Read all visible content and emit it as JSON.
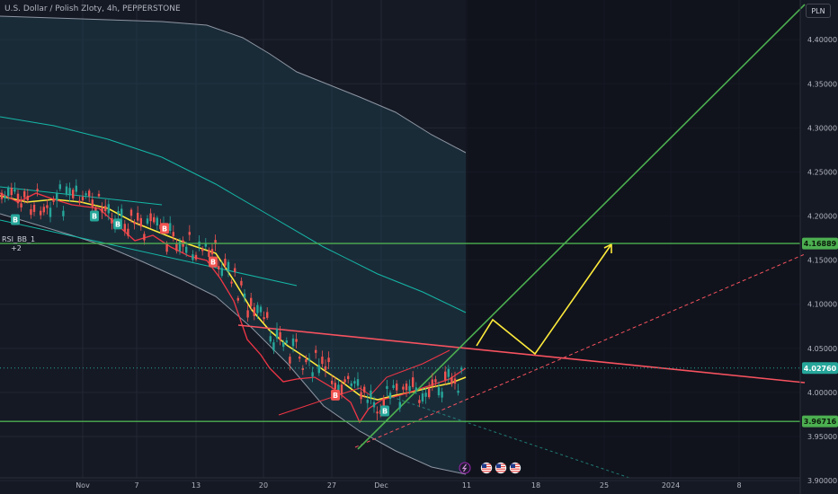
{
  "header": {
    "symbol_title": "U.S. Dollar / Polish Zloty, 4h, PEPPERSTONE",
    "currency_button": "PLN"
  },
  "indicator": {
    "label": "RSI_BB_1",
    "sublabel": "+2"
  },
  "colors": {
    "background": "#151924",
    "grid": "#232733",
    "bull": "#26a69a",
    "bear": "#ef5350",
    "channel_band": "#8e96a3",
    "ema_yellow": "#ffeb3b",
    "ema_red": "#f23645",
    "ma_teal": "#14b8a6",
    "level_green": "#4caf50",
    "trend_red": "#f7525f",
    "projection_yellow": "#ffeb3b"
  },
  "chart_data": {
    "type": "candlestick",
    "x_ticks": [
      "Nov",
      "7",
      "13",
      "20",
      "27",
      "Dec",
      "11",
      "18",
      "25",
      "2024",
      "8"
    ],
    "y_ticks": [
      "4.40000",
      "4.35000",
      "4.30000",
      "4.25000",
      "4.20000",
      "4.15000",
      "4.10000",
      "4.05000",
      "4.00000",
      "3.95000",
      "3.90000"
    ],
    "ylim": [
      3.895,
      4.445
    ],
    "price_levels": [
      {
        "value": 4.16889,
        "label": "4.16889",
        "style": "solid-green"
      },
      {
        "value": 4.0276,
        "label": "4.02760",
        "style": "current-price"
      },
      {
        "value": 3.96716,
        "label": "3.96716",
        "style": "solid-green"
      }
    ],
    "signal_markers": [
      {
        "label": "B",
        "type": "buy",
        "x": 17,
        "y": 4.196
      },
      {
        "label": "B",
        "type": "buy",
        "x": 105,
        "y": 4.2
      },
      {
        "label": "B",
        "type": "buy",
        "x": 131,
        "y": 4.191
      },
      {
        "label": "B",
        "type": "sell",
        "x": 183,
        "y": 4.186
      },
      {
        "label": "B",
        "type": "sell",
        "x": 237,
        "y": 4.148
      },
      {
        "label": "B",
        "type": "sell",
        "x": 373,
        "y": 3.997
      },
      {
        "label": "B",
        "type": "buy",
        "x": 428,
        "y": 3.979
      }
    ],
    "event_icons": [
      "bolt-icon",
      "us-flag-icon",
      "us-flag-icon",
      "us-flag-icon"
    ]
  }
}
